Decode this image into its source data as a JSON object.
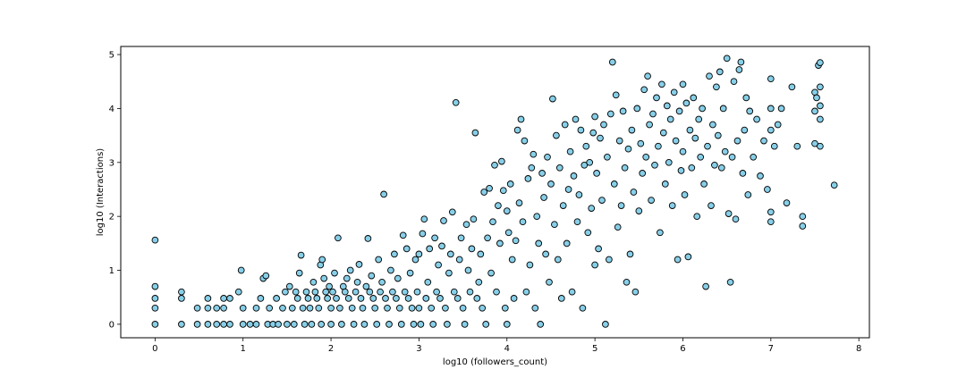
{
  "chart_data": {
    "type": "scatter",
    "title": "",
    "xlabel": "log10 (followers_count)",
    "ylabel": "log10 (Interactions)",
    "xlim": [
      -0.39,
      8.12
    ],
    "ylim": [
      -0.25,
      5.15
    ],
    "xticks": [
      0,
      1,
      2,
      3,
      4,
      5,
      6,
      7,
      8
    ],
    "yticks": [
      0,
      1,
      2,
      3,
      4,
      5
    ],
    "grid": false,
    "marker": {
      "shape": "circle",
      "face_color": "#87cfe8",
      "edge_color": "#000000"
    },
    "points": [
      [
        0.0,
        1.56
      ],
      [
        0.0,
        0.7
      ],
      [
        0.0,
        0.48
      ],
      [
        0.0,
        0.3
      ],
      [
        0.0,
        0.0
      ],
      [
        0.3,
        0.6
      ],
      [
        0.3,
        0.48
      ],
      [
        0.3,
        0.0
      ],
      [
        0.48,
        0.3
      ],
      [
        0.48,
        0.0
      ],
      [
        0.6,
        0.48
      ],
      [
        0.6,
        0.3
      ],
      [
        0.6,
        0.0
      ],
      [
        0.7,
        0.3
      ],
      [
        0.7,
        0.0
      ],
      [
        0.78,
        0.48
      ],
      [
        0.78,
        0.3
      ],
      [
        0.78,
        0.0
      ],
      [
        0.85,
        0.48
      ],
      [
        0.85,
        0.0
      ],
      [
        0.95,
        0.6
      ],
      [
        0.98,
        1.0
      ],
      [
        1.0,
        0.3
      ],
      [
        1.0,
        0.0
      ],
      [
        1.08,
        0.0
      ],
      [
        1.15,
        0.3
      ],
      [
        1.15,
        0.0
      ],
      [
        1.2,
        0.48
      ],
      [
        1.23,
        0.85
      ],
      [
        1.26,
        0.9
      ],
      [
        1.28,
        0.0
      ],
      [
        1.3,
        0.3
      ],
      [
        1.34,
        0.0
      ],
      [
        1.38,
        0.48
      ],
      [
        1.4,
        0.0
      ],
      [
        1.45,
        0.3
      ],
      [
        1.48,
        0.6
      ],
      [
        1.5,
        0.0
      ],
      [
        1.53,
        0.7
      ],
      [
        1.56,
        0.3
      ],
      [
        1.58,
        0.0
      ],
      [
        1.6,
        0.6
      ],
      [
        1.62,
        0.48
      ],
      [
        1.64,
        0.95
      ],
      [
        1.66,
        1.28
      ],
      [
        1.68,
        0.3
      ],
      [
        1.7,
        0.0
      ],
      [
        1.72,
        0.6
      ],
      [
        1.74,
        0.48
      ],
      [
        1.76,
        0.3
      ],
      [
        1.78,
        0.0
      ],
      [
        1.8,
        0.78
      ],
      [
        1.82,
        0.6
      ],
      [
        1.84,
        0.48
      ],
      [
        1.86,
        0.3
      ],
      [
        1.88,
        1.1
      ],
      [
        1.89,
        0.0
      ],
      [
        1.9,
        1.2
      ],
      [
        1.92,
        0.85
      ],
      [
        1.94,
        0.6
      ],
      [
        1.96,
        0.48
      ],
      [
        1.98,
        0.7
      ],
      [
        2.0,
        0.3
      ],
      [
        2.0,
        0.0
      ],
      [
        2.02,
        0.6
      ],
      [
        2.04,
        0.95
      ],
      [
        2.06,
        0.48
      ],
      [
        2.08,
        1.6
      ],
      [
        2.1,
        0.3
      ],
      [
        2.12,
        0.0
      ],
      [
        2.14,
        0.7
      ],
      [
        2.16,
        0.6
      ],
      [
        2.18,
        0.85
      ],
      [
        2.2,
        0.48
      ],
      [
        2.22,
        1.0
      ],
      [
        2.24,
        0.3
      ],
      [
        2.26,
        0.0
      ],
      [
        2.28,
        0.6
      ],
      [
        2.3,
        0.78
      ],
      [
        2.32,
        1.11
      ],
      [
        2.34,
        0.48
      ],
      [
        2.36,
        0.3
      ],
      [
        2.38,
        0.0
      ],
      [
        2.4,
        0.7
      ],
      [
        2.42,
        1.59
      ],
      [
        2.44,
        0.6
      ],
      [
        2.46,
        0.9
      ],
      [
        2.48,
        0.48
      ],
      [
        2.5,
        0.3
      ],
      [
        2.52,
        0.0
      ],
      [
        2.54,
        1.2
      ],
      [
        2.56,
        0.6
      ],
      [
        2.58,
        0.78
      ],
      [
        2.6,
        2.41
      ],
      [
        2.62,
        0.48
      ],
      [
        2.64,
        0.3
      ],
      [
        2.66,
        0.0
      ],
      [
        2.68,
        1.0
      ],
      [
        2.7,
        0.6
      ],
      [
        2.72,
        1.3
      ],
      [
        2.74,
        0.48
      ],
      [
        2.76,
        0.85
      ],
      [
        2.78,
        0.3
      ],
      [
        2.8,
        0.0
      ],
      [
        2.82,
        1.65
      ],
      [
        2.84,
        0.6
      ],
      [
        2.86,
        1.4
      ],
      [
        2.88,
        0.48
      ],
      [
        2.9,
        0.95
      ],
      [
        2.92,
        0.3
      ],
      [
        2.94,
        0.0
      ],
      [
        2.96,
        1.2
      ],
      [
        2.98,
        0.6
      ],
      [
        3.0,
        1.3
      ],
      [
        3.0,
        0.3
      ],
      [
        3.02,
        0.0
      ],
      [
        3.04,
        1.68
      ],
      [
        3.06,
        1.95
      ],
      [
        3.08,
        0.48
      ],
      [
        3.1,
        0.78
      ],
      [
        3.12,
        1.4
      ],
      [
        3.14,
        0.3
      ],
      [
        3.16,
        0.0
      ],
      [
        3.18,
        1.6
      ],
      [
        3.2,
        0.6
      ],
      [
        3.22,
        1.1
      ],
      [
        3.24,
        0.48
      ],
      [
        3.26,
        1.45
      ],
      [
        3.28,
        1.92
      ],
      [
        3.3,
        0.3
      ],
      [
        3.32,
        0.0
      ],
      [
        3.34,
        0.95
      ],
      [
        3.36,
        1.3
      ],
      [
        3.38,
        2.08
      ],
      [
        3.4,
        0.6
      ],
      [
        3.42,
        4.11
      ],
      [
        3.44,
        0.48
      ],
      [
        3.46,
        1.2
      ],
      [
        3.48,
        1.6
      ],
      [
        3.5,
        0.3
      ],
      [
        3.52,
        0.0
      ],
      [
        3.54,
        1.85
      ],
      [
        3.56,
        1.0
      ],
      [
        3.58,
        0.6
      ],
      [
        3.6,
        1.4
      ],
      [
        3.62,
        1.95
      ],
      [
        3.64,
        3.55
      ],
      [
        3.66,
        0.48
      ],
      [
        3.68,
        0.78
      ],
      [
        3.7,
        1.3
      ],
      [
        3.72,
        0.3
      ],
      [
        3.74,
        2.45
      ],
      [
        3.76,
        0.0
      ],
      [
        3.78,
        1.6
      ],
      [
        3.8,
        2.52
      ],
      [
        3.82,
        0.95
      ],
      [
        3.84,
        1.9
      ],
      [
        3.86,
        2.95
      ],
      [
        3.88,
        0.6
      ],
      [
        3.9,
        2.2
      ],
      [
        3.92,
        1.5
      ],
      [
        3.94,
        3.02
      ],
      [
        3.96,
        2.48
      ],
      [
        3.98,
        0.3
      ],
      [
        4.0,
        2.1
      ],
      [
        4.0,
        0.0
      ],
      [
        4.02,
        1.7
      ],
      [
        4.04,
        2.6
      ],
      [
        4.06,
        1.2
      ],
      [
        4.08,
        0.48
      ],
      [
        4.1,
        1.55
      ],
      [
        4.12,
        3.6
      ],
      [
        4.14,
        2.25
      ],
      [
        4.16,
        3.8
      ],
      [
        4.18,
        1.9
      ],
      [
        4.2,
        3.4
      ],
      [
        4.22,
        0.6
      ],
      [
        4.24,
        2.7
      ],
      [
        4.26,
        1.1
      ],
      [
        4.28,
        2.9
      ],
      [
        4.3,
        3.15
      ],
      [
        4.32,
        0.3
      ],
      [
        4.34,
        2.0
      ],
      [
        4.36,
        1.5
      ],
      [
        4.38,
        0.0
      ],
      [
        4.4,
        2.8
      ],
      [
        4.42,
        2.35
      ],
      [
        4.44,
        1.3
      ],
      [
        4.46,
        3.1
      ],
      [
        4.48,
        0.78
      ],
      [
        4.5,
        2.6
      ],
      [
        4.52,
        4.18
      ],
      [
        4.54,
        1.85
      ],
      [
        4.56,
        3.5
      ],
      [
        4.58,
        1.2
      ],
      [
        4.6,
        2.9
      ],
      [
        4.62,
        0.48
      ],
      [
        4.64,
        2.2
      ],
      [
        4.66,
        3.7
      ],
      [
        4.68,
        1.5
      ],
      [
        4.7,
        2.5
      ],
      [
        4.72,
        3.2
      ],
      [
        4.74,
        0.6
      ],
      [
        4.76,
        2.75
      ],
      [
        4.78,
        3.8
      ],
      [
        4.8,
        1.9
      ],
      [
        4.82,
        2.4
      ],
      [
        4.84,
        3.6
      ],
      [
        4.86,
        0.3
      ],
      [
        4.88,
        2.95
      ],
      [
        4.9,
        3.3
      ],
      [
        4.92,
        1.7
      ],
      [
        4.94,
        3.0
      ],
      [
        4.96,
        2.15
      ],
      [
        4.98,
        3.55
      ],
      [
        5.0,
        1.1
      ],
      [
        5.0,
        3.85
      ],
      [
        5.02,
        2.8
      ],
      [
        5.04,
        1.4
      ],
      [
        5.06,
        3.45
      ],
      [
        5.08,
        2.3
      ],
      [
        5.1,
        3.7
      ],
      [
        5.12,
        0.0
      ],
      [
        5.14,
        3.1
      ],
      [
        5.16,
        1.2
      ],
      [
        5.18,
        3.9
      ],
      [
        5.2,
        4.86
      ],
      [
        5.22,
        2.6
      ],
      [
        5.24,
        4.25
      ],
      [
        5.26,
        1.8
      ],
      [
        5.28,
        3.4
      ],
      [
        5.3,
        2.2
      ],
      [
        5.32,
        3.95
      ],
      [
        5.34,
        2.9
      ],
      [
        5.36,
        0.78
      ],
      [
        5.38,
        3.25
      ],
      [
        5.4,
        1.3
      ],
      [
        5.42,
        3.6
      ],
      [
        5.44,
        2.45
      ],
      [
        5.46,
        0.6
      ],
      [
        5.48,
        4.0
      ],
      [
        5.5,
        2.1
      ],
      [
        5.52,
        3.35
      ],
      [
        5.54,
        2.8
      ],
      [
        5.56,
        4.35
      ],
      [
        5.58,
        3.1
      ],
      [
        5.6,
        4.6
      ],
      [
        5.62,
        3.7
      ],
      [
        5.64,
        2.3
      ],
      [
        5.66,
        3.9
      ],
      [
        5.68,
        2.95
      ],
      [
        5.7,
        4.2
      ],
      [
        5.72,
        3.3
      ],
      [
        5.74,
        1.7
      ],
      [
        5.76,
        4.45
      ],
      [
        5.78,
        3.55
      ],
      [
        5.8,
        2.6
      ],
      [
        5.82,
        4.05
      ],
      [
        5.84,
        3.0
      ],
      [
        5.86,
        3.8
      ],
      [
        5.88,
        2.2
      ],
      [
        5.9,
        4.3
      ],
      [
        5.92,
        3.4
      ],
      [
        5.94,
        1.2
      ],
      [
        5.96,
        3.95
      ],
      [
        5.98,
        2.85
      ],
      [
        6.0,
        4.45
      ],
      [
        6.0,
        3.2
      ],
      [
        6.02,
        2.4
      ],
      [
        6.04,
        4.1
      ],
      [
        6.06,
        1.25
      ],
      [
        6.08,
        3.6
      ],
      [
        6.1,
        2.9
      ],
      [
        6.12,
        4.2
      ],
      [
        6.14,
        3.45
      ],
      [
        6.16,
        2.0
      ],
      [
        6.18,
        3.8
      ],
      [
        6.2,
        3.1
      ],
      [
        6.22,
        4.0
      ],
      [
        6.24,
        2.6
      ],
      [
        6.26,
        0.7
      ],
      [
        6.28,
        3.3
      ],
      [
        6.3,
        4.6
      ],
      [
        6.32,
        2.2
      ],
      [
        6.34,
        3.7
      ],
      [
        6.36,
        2.95
      ],
      [
        6.38,
        4.4
      ],
      [
        6.4,
        3.5
      ],
      [
        6.42,
        4.68
      ],
      [
        6.44,
        2.9
      ],
      [
        6.46,
        4.0
      ],
      [
        6.48,
        3.2
      ],
      [
        6.5,
        4.93
      ],
      [
        6.52,
        2.05
      ],
      [
        6.54,
        0.78
      ],
      [
        6.56,
        3.1
      ],
      [
        6.58,
        4.5
      ],
      [
        6.6,
        1.95
      ],
      [
        6.62,
        3.4
      ],
      [
        6.64,
        4.72
      ],
      [
        6.66,
        4.86
      ],
      [
        6.68,
        2.8
      ],
      [
        6.7,
        3.6
      ],
      [
        6.72,
        4.2
      ],
      [
        6.74,
        2.4
      ],
      [
        6.76,
        3.95
      ],
      [
        6.8,
        3.1
      ],
      [
        6.84,
        3.8
      ],
      [
        6.88,
        2.75
      ],
      [
        6.92,
        3.4
      ],
      [
        6.96,
        2.5
      ],
      [
        7.0,
        4.55
      ],
      [
        7.0,
        4.0
      ],
      [
        7.0,
        3.6
      ],
      [
        7.0,
        2.08
      ],
      [
        7.0,
        1.9
      ],
      [
        7.04,
        3.3
      ],
      [
        7.08,
        3.7
      ],
      [
        7.12,
        4.0
      ],
      [
        7.18,
        2.25
      ],
      [
        7.24,
        4.4
      ],
      [
        7.3,
        3.3
      ],
      [
        7.36,
        2.0
      ],
      [
        7.36,
        1.82
      ],
      [
        7.5,
        4.3
      ],
      [
        7.5,
        3.95
      ],
      [
        7.5,
        3.35
      ],
      [
        7.52,
        4.2
      ],
      [
        7.54,
        4.8
      ],
      [
        7.56,
        4.85
      ],
      [
        7.56,
        4.4
      ],
      [
        7.56,
        4.05
      ],
      [
        7.56,
        3.8
      ],
      [
        7.56,
        3.3
      ],
      [
        7.72,
        2.58
      ]
    ]
  }
}
